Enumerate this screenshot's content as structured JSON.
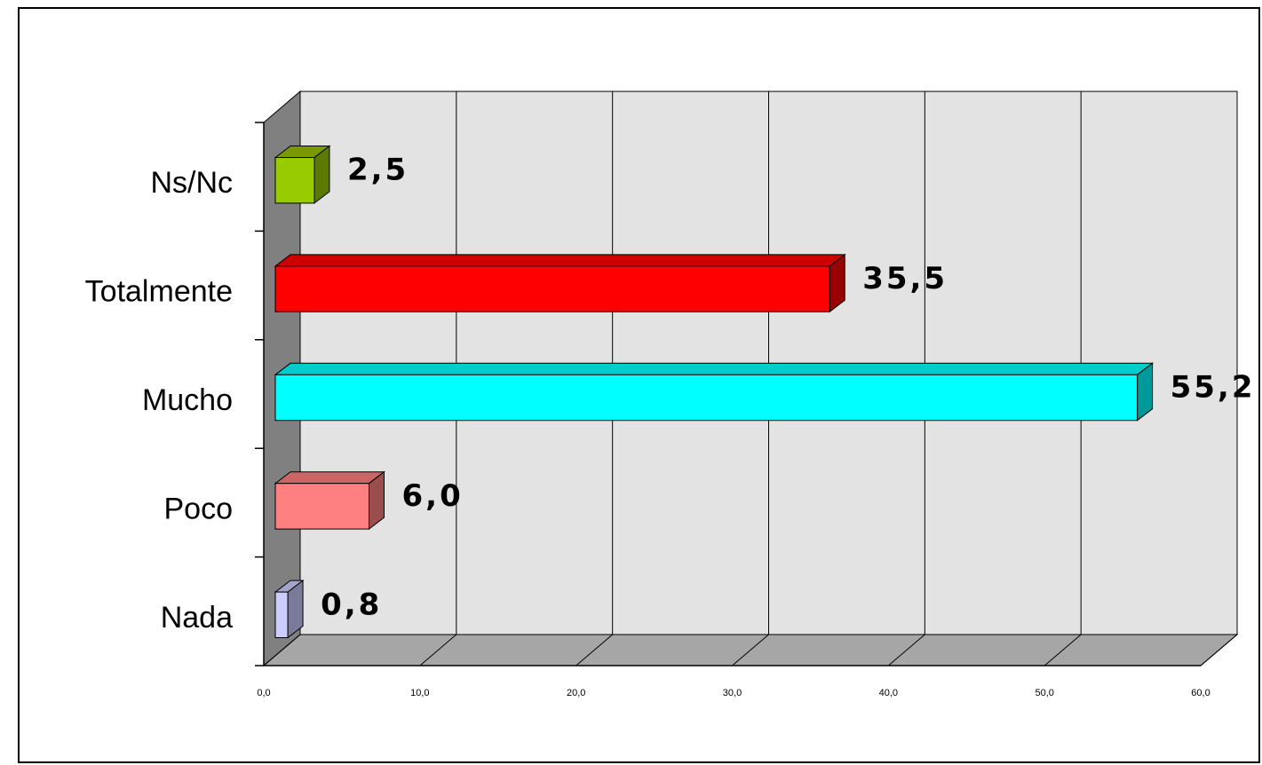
{
  "chart_data": {
    "type": "bar",
    "orientation": "horizontal",
    "three_d": true,
    "categories": [
      "Ns/Nc",
      "Totalmente",
      "Mucho",
      "Poco",
      "Nada"
    ],
    "values": [
      2.5,
      35.5,
      55.2,
      6.0,
      0.8
    ],
    "data_labels": [
      "2,5",
      "35,5",
      "55,2",
      "6,0",
      "0,8"
    ],
    "colors": [
      "#99cc00",
      "#ff0000",
      "#00ffff",
      "#ff8080",
      "#ccccff"
    ],
    "side_colors": [
      "#5c7a00",
      "#990000",
      "#009999",
      "#994d4d",
      "#7a7a99"
    ],
    "top_colors": [
      "#7a9900",
      "#cc0000",
      "#00cccc",
      "#cc6666",
      "#a3a3cc"
    ],
    "xlim": [
      0,
      60
    ],
    "x_ticks": [
      0,
      10,
      20,
      30,
      40,
      50,
      60
    ],
    "x_tick_labels": [
      "0,0",
      "10,0",
      "20,0",
      "30,0",
      "40,0",
      "50,0",
      "60,0"
    ],
    "grid": true,
    "legend": false,
    "title": "",
    "xlabel": "",
    "ylabel": "",
    "wall_color": "#e3e3e3",
    "side_wall_color": "#808080",
    "floor_color": "#a6a6a6"
  }
}
